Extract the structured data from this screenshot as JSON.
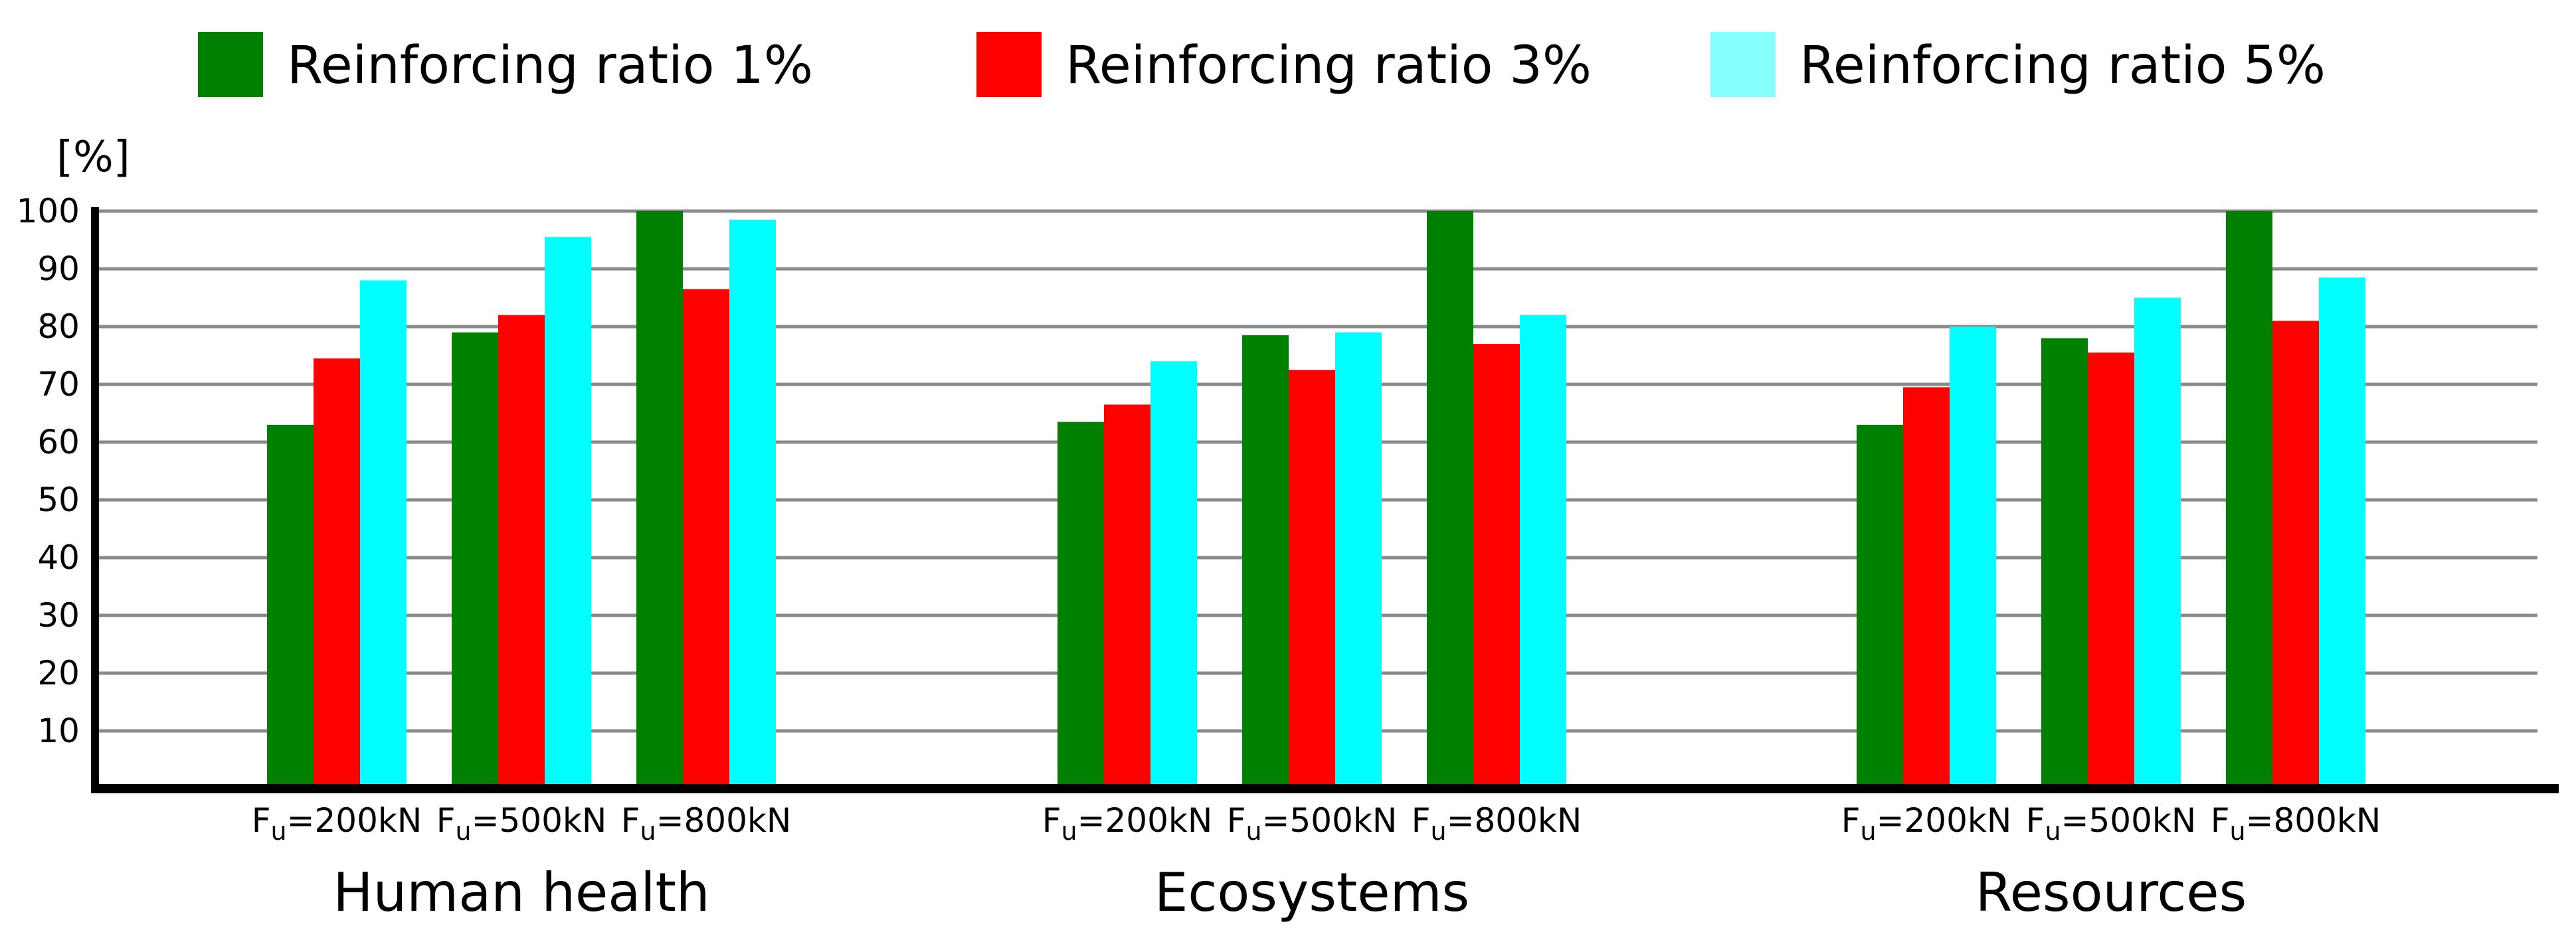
{
  "chart_data": {
    "type": "bar",
    "ylabel": "[%]",
    "ylim": [
      0,
      100
    ],
    "yticks": [
      "10",
      "20",
      "30",
      "40",
      "50",
      "60",
      "70",
      "80",
      "90",
      "100"
    ],
    "grid": true,
    "legend_position": "top",
    "groups": [
      {
        "name": "Human health",
        "categories": [
          "200kN",
          "500kN",
          "800kN"
        ]
      },
      {
        "name": "Ecosystems",
        "categories": [
          "200kN",
          "500kN",
          "800kN"
        ]
      },
      {
        "name": "Resources",
        "categories": [
          "200kN",
          "500kN",
          "800kN"
        ]
      }
    ],
    "category_prefix": "F",
    "category_subscript": "u",
    "category_separator": "=",
    "series": [
      {
        "name": "Reinforcing ratio 1%",
        "color": "#008000",
        "values": [
          [
            63,
            79,
            100
          ],
          [
            63.5,
            78.5,
            100
          ],
          [
            63,
            78,
            100
          ]
        ]
      },
      {
        "name": "Reinforcing ratio 3%",
        "color": "#ff0000",
        "values": [
          [
            74.5,
            82,
            86.5
          ],
          [
            66.5,
            72.5,
            77
          ],
          [
            69.5,
            75.5,
            81
          ]
        ]
      },
      {
        "name": "Reinforcing ratio 5%",
        "color": "#00ffff",
        "values": [
          [
            88,
            95.5,
            98.5
          ],
          [
            74,
            79,
            82
          ],
          [
            80,
            85,
            88.5
          ]
        ]
      }
    ],
    "legend_swatch_colors": [
      "#008000",
      "#ff0000",
      "#88ffff"
    ]
  }
}
